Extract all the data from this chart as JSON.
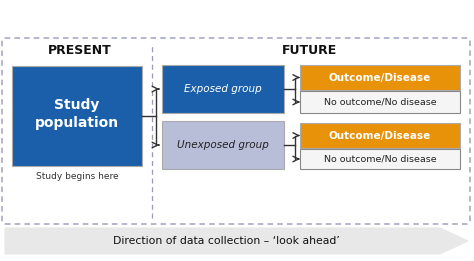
{
  "bg_color": "#ffffff",
  "present_label": "PRESENT",
  "future_label": "FUTURE",
  "study_pop_text": "Study\npopulation",
  "study_pop_color": "#1b5faa",
  "study_pop_text_color": "#ffffff",
  "study_begins_text": "Study begins here",
  "exposed_text": "Exposed group",
  "exposed_color": "#1b5faa",
  "exposed_text_color": "#ffffff",
  "unexposed_text": "Unexposed group",
  "unexposed_color": "#b8bdd8",
  "unexposed_text_color": "#222222",
  "outcome_disease_text": "Outcome/Disease",
  "outcome_color": "#e8920a",
  "outcome_text_color": "#ffffff",
  "no_outcome_text": "No outcome/No disease",
  "no_outcome_color": "#f5f5f5",
  "no_outcome_text_color": "#222222",
  "arrow_text": "Direction of data collection – ‘look ahead’",
  "arrow_fill": "#e8e8e8",
  "border_color": "#9999bb",
  "line_color": "#333333"
}
